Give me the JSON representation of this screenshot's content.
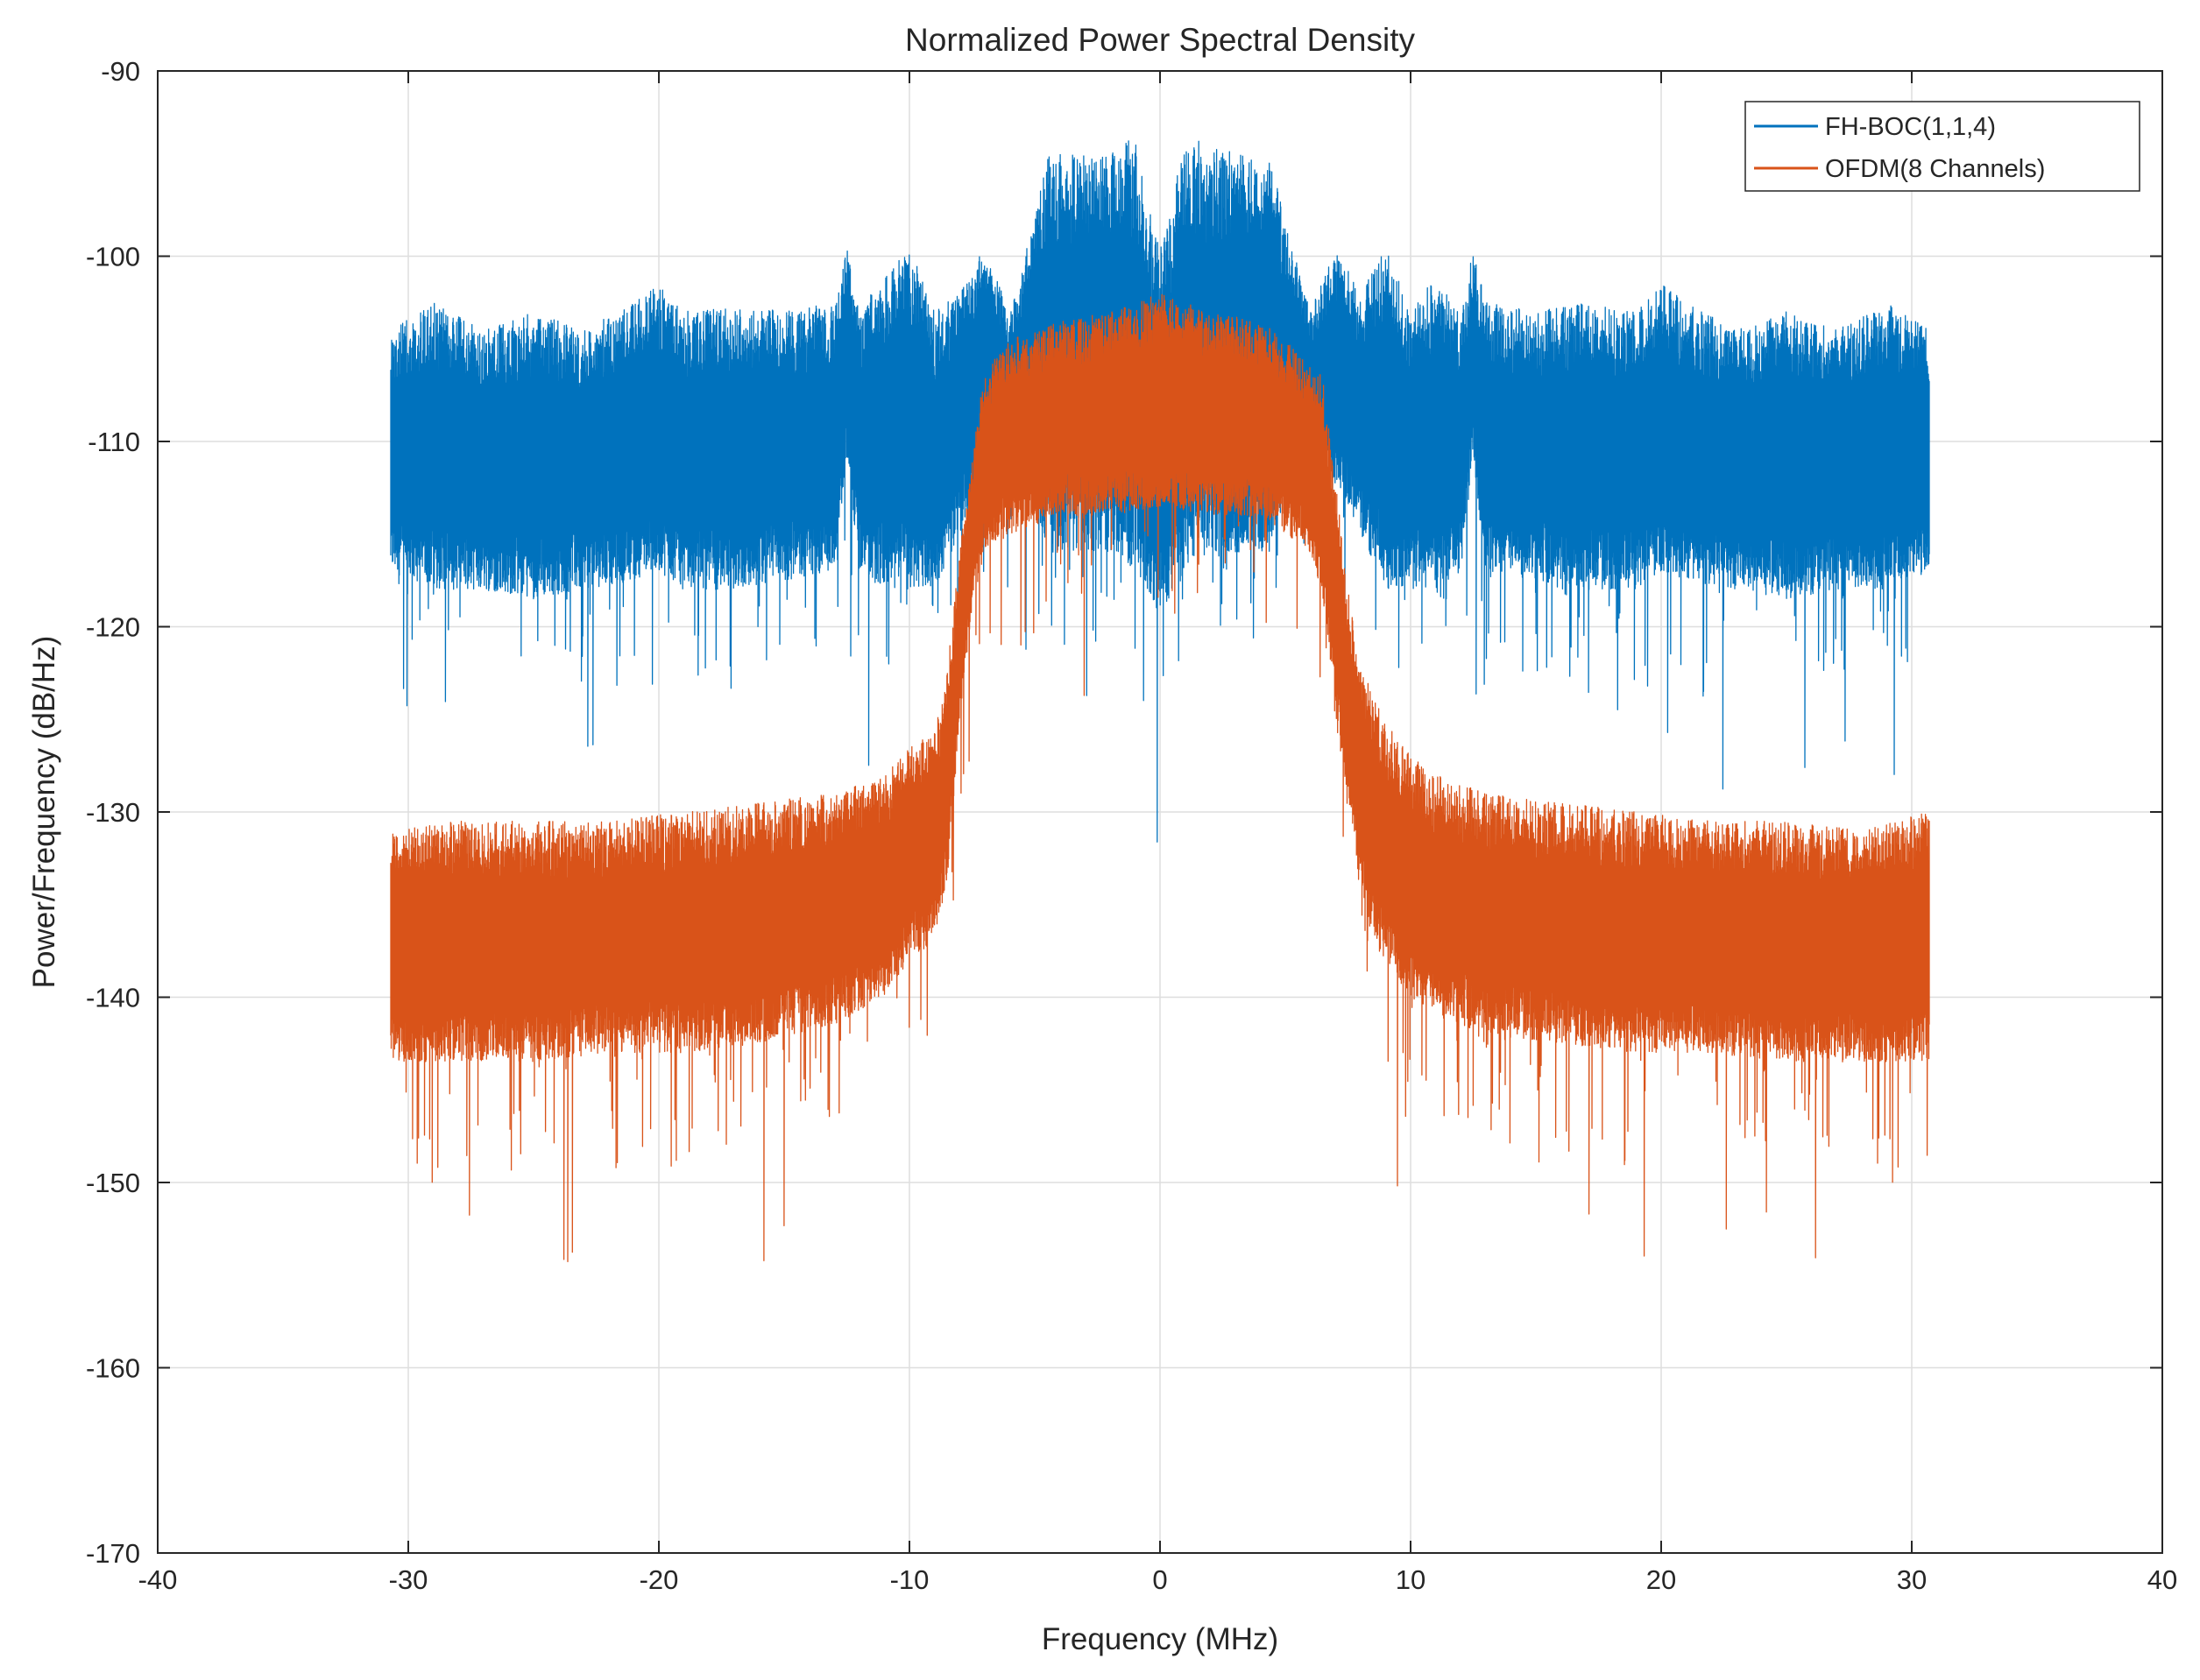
{
  "chart_data": {
    "type": "line",
    "title": "Normalized Power Spectral Density",
    "xlabel": "Frequency (MHz)",
    "ylabel": "Power/Frequency (dB/Hz)",
    "xlim": [
      -40,
      40
    ],
    "ylim": [
      -170,
      -90
    ],
    "xticks": [
      -40,
      -30,
      -20,
      -10,
      0,
      10,
      20,
      30,
      40
    ],
    "yticks": [
      -170,
      -160,
      -150,
      -140,
      -130,
      -120,
      -110,
      -100,
      -90
    ],
    "grid": true,
    "legend_position": "top-right",
    "frequency_range": [
      -30.7,
      30.7
    ],
    "series": [
      {
        "name": "FH-BOC(1,1,4)",
        "color": "#0072BD",
        "envelope_x": [
          -30.7,
          -29,
          -27,
          -25,
          -23,
          -21,
          -20,
          -19,
          -17,
          -15,
          -13,
          -12.5,
          -12,
          -11,
          -10,
          -9,
          -8,
          -7,
          -6,
          -5,
          -4.5,
          -2,
          -1,
          -0.2,
          0.2,
          1,
          2,
          4.5,
          5,
          6,
          7,
          8,
          9,
          10,
          11,
          12,
          12.5,
          13,
          15,
          17,
          19,
          20,
          21,
          23,
          25,
          27,
          29,
          30.7
        ],
        "envelope_max": [
          -104,
          -102.5,
          -104,
          -103,
          -104,
          -102.5,
          -101.5,
          -103,
          -102.5,
          -103,
          -102.5,
          -99.5,
          -103,
          -101,
          -99.5,
          -103,
          -102,
          -99.5,
          -103,
          -98,
          -94.5,
          -94.5,
          -93.5,
          -99,
          -99,
          -93.5,
          -94,
          -95,
          -98,
          -103,
          -99.5,
          -102,
          -99.5,
          -103,
          -101,
          -103,
          -99.5,
          -102.5,
          -103,
          -102.5,
          -103,
          -101.5,
          -102.5,
          -104,
          -103,
          -104,
          -102.5,
          -104
        ],
        "envelope_min": [
          -117,
          -118,
          -118,
          -118.5,
          -118,
          -117.5,
          -117,
          -118,
          -118,
          -117.5,
          -117,
          -111,
          -117,
          -118,
          -118,
          -118,
          -115,
          -112,
          -113,
          -113,
          -116,
          -116,
          -117,
          -119,
          -119,
          -117,
          -116,
          -116,
          -113,
          -113,
          -112,
          -115,
          -118,
          -118,
          -118,
          -117,
          -111,
          -117,
          -117.5,
          -118,
          -118,
          -117,
          -117.5,
          -118,
          -118.5,
          -118,
          -118,
          -117
        ]
      },
      {
        "name": "OFDM(8 Channels)",
        "color": "#D95319",
        "envelope_x": [
          -30.7,
          -28,
          -25,
          -22,
          -19,
          -16,
          -13,
          -11,
          -10,
          -9,
          -8.5,
          -8,
          -7.5,
          -7,
          -6,
          -4,
          -2,
          0,
          2,
          4,
          5,
          6,
          6.5,
          7,
          7.5,
          8,
          8.5,
          9,
          10,
          11,
          13,
          16,
          19,
          22,
          25,
          28,
          30.7
        ],
        "envelope_max": [
          -131,
          -130.5,
          -130.5,
          -130.5,
          -130,
          -129.5,
          -129,
          -128,
          -126.5,
          -125.5,
          -122.5,
          -116,
          -111,
          -106,
          -104.5,
          -103.5,
          -103,
          -102,
          -103,
          -103.5,
          -104.5,
          -106,
          -106.5,
          -112,
          -118,
          -122,
          -123.5,
          -125,
          -127,
          -128,
          -129,
          -129.5,
          -130,
          -130.5,
          -130.5,
          -131,
          -130
        ],
        "envelope_min": [
          -143.5,
          -143.5,
          -143.5,
          -143,
          -143,
          -142.5,
          -141.5,
          -140,
          -138,
          -137,
          -134,
          -125,
          -119,
          -116,
          -115,
          -114,
          -114,
          -113.5,
          -114,
          -114,
          -115,
          -116,
          -118.5,
          -125,
          -130,
          -134,
          -137,
          -138,
          -140,
          -141,
          -142,
          -142.5,
          -143,
          -143,
          -143.5,
          -143.5,
          -143.5
        ]
      }
    ]
  }
}
